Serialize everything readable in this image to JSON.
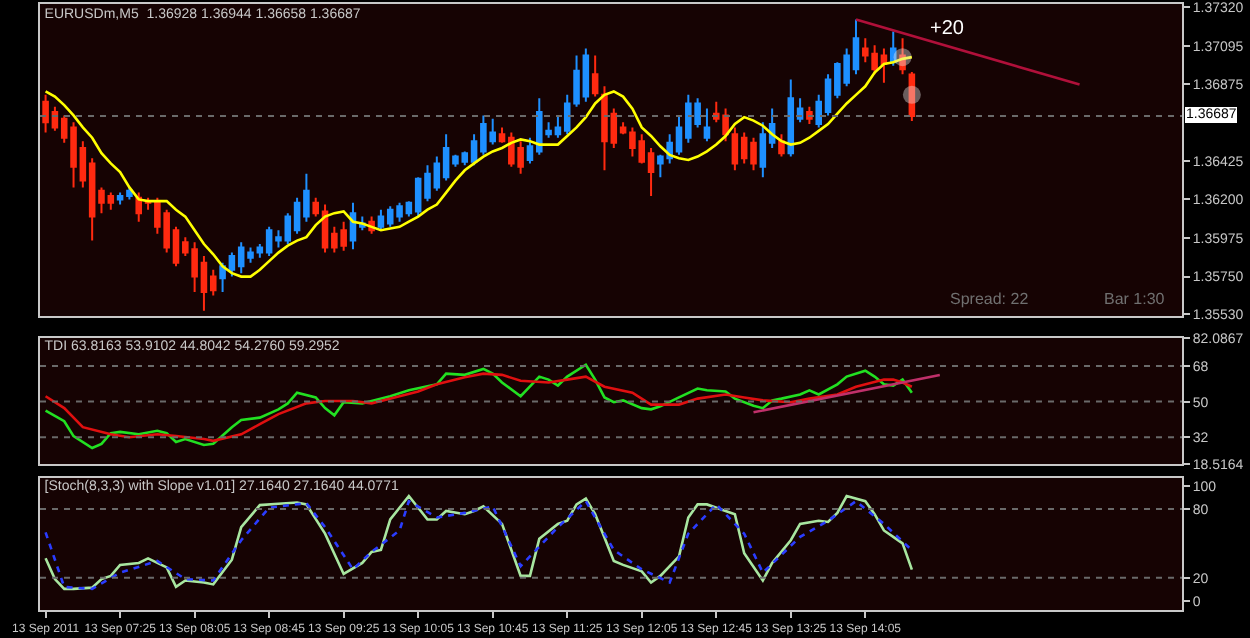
{
  "chart_data": [
    {
      "type": "candlestick",
      "title": "EURUSDm,M5  1.36928 1.36944 1.36658 1.36687",
      "x": [
        "2011-09-13T06:45",
        "2011-09-13T06:50",
        "2011-09-13T06:55",
        "2011-09-13T07:00",
        "2011-09-13T07:05",
        "2011-09-13T07:10",
        "2011-09-13T07:15",
        "2011-09-13T07:20",
        "2011-09-13T07:25",
        "2011-09-13T07:30",
        "2011-09-13T07:35",
        "2011-09-13T07:40",
        "2011-09-13T07:45",
        "2011-09-13T07:50",
        "2011-09-13T07:55",
        "2011-09-13T08:00",
        "2011-09-13T08:05",
        "2011-09-13T08:10",
        "2011-09-13T08:15",
        "2011-09-13T08:20",
        "2011-09-13T08:25",
        "2011-09-13T08:30",
        "2011-09-13T08:35",
        "2011-09-13T08:40",
        "2011-09-13T08:45",
        "2011-09-13T08:50",
        "2011-09-13T08:55",
        "2011-09-13T09:00",
        "2011-09-13T09:05",
        "2011-09-13T09:10",
        "2011-09-13T09:15",
        "2011-09-13T09:20",
        "2011-09-13T09:25",
        "2011-09-13T09:30",
        "2011-09-13T09:35",
        "2011-09-13T09:40",
        "2011-09-13T09:45",
        "2011-09-13T09:50",
        "2011-09-13T09:55",
        "2011-09-13T10:00",
        "2011-09-13T10:05",
        "2011-09-13T10:10",
        "2011-09-13T10:15",
        "2011-09-13T10:20",
        "2011-09-13T10:25",
        "2011-09-13T10:30",
        "2011-09-13T10:35",
        "2011-09-13T10:40",
        "2011-09-13T10:45",
        "2011-09-13T10:50",
        "2011-09-13T10:55",
        "2011-09-13T11:00",
        "2011-09-13T11:05",
        "2011-09-13T11:10",
        "2011-09-13T11:15",
        "2011-09-13T11:20",
        "2011-09-13T11:25",
        "2011-09-13T11:30",
        "2011-09-13T11:35",
        "2011-09-13T11:40",
        "2011-09-13T11:45",
        "2011-09-13T11:50",
        "2011-09-13T11:55",
        "2011-09-13T12:00",
        "2011-09-13T12:05",
        "2011-09-13T12:10",
        "2011-09-13T12:15",
        "2011-09-13T12:20",
        "2011-09-13T12:25",
        "2011-09-13T12:30",
        "2011-09-13T12:35",
        "2011-09-13T12:40",
        "2011-09-13T12:45",
        "2011-09-13T12:50",
        "2011-09-13T12:55",
        "2011-09-13T13:00",
        "2011-09-13T13:05",
        "2011-09-13T13:10",
        "2011-09-13T13:15",
        "2011-09-13T13:20",
        "2011-09-13T13:25",
        "2011-09-13T13:30",
        "2011-09-13T13:35",
        "2011-09-13T13:40",
        "2011-09-13T13:45",
        "2011-09-13T13:50",
        "2011-09-13T13:55",
        "2011-09-13T14:00",
        "2011-09-13T14:05",
        "2011-09-13T14:10",
        "2011-09-13T14:15",
        "2011-09-13T14:20",
        "2011-09-13T14:25",
        "2011-09-13T14:30"
      ],
      "ohlc": [
        [
          1.3677,
          1.3681,
          1.3659,
          1.3665
        ],
        [
          1.3671,
          1.3674,
          1.366,
          1.3662
        ],
        [
          1.3667,
          1.3669,
          1.3653,
          1.3656
        ],
        [
          1.3662,
          1.3665,
          1.3627,
          1.3639
        ],
        [
          1.365,
          1.3654,
          1.3627,
          1.3631
        ],
        [
          1.3641,
          1.3644,
          1.3596,
          1.361
        ],
        [
          1.3625,
          1.3627,
          1.3612,
          1.3618
        ],
        [
          1.3622,
          1.3624,
          1.3614,
          1.3618
        ],
        [
          1.362,
          1.3624,
          1.3617,
          1.3622
        ],
        [
          1.3622,
          1.3627,
          1.362,
          1.3625
        ],
        [
          1.3621,
          1.3624,
          1.3607,
          1.3612
        ],
        [
          1.3619,
          1.3621,
          1.3614,
          1.3618
        ],
        [
          1.3619,
          1.3621,
          1.36,
          1.3604
        ],
        [
          1.3612,
          1.3614,
          1.3589,
          1.3592
        ],
        [
          1.3602,
          1.3604,
          1.3581,
          1.3583
        ],
        [
          1.3595,
          1.3598,
          1.3587,
          1.3589
        ],
        [
          1.3591,
          1.3595,
          1.3566,
          1.3575
        ],
        [
          1.3583,
          1.3587,
          1.3555,
          1.3566
        ],
        [
          1.3575,
          1.3579,
          1.3564,
          1.3567
        ],
        [
          1.3574,
          1.3583,
          1.3566,
          1.3581
        ],
        [
          1.3579,
          1.3589,
          1.3575,
          1.3587
        ],
        [
          1.3581,
          1.3595,
          1.3577,
          1.3592
        ],
        [
          1.3586,
          1.3592,
          1.3583,
          1.3589
        ],
        [
          1.3589,
          1.3594,
          1.3586,
          1.3592
        ],
        [
          1.3589,
          1.3604,
          1.3587,
          1.3602
        ],
        [
          1.3596,
          1.3602,
          1.3592,
          1.3598
        ],
        [
          1.3596,
          1.3612,
          1.3594,
          1.361
        ],
        [
          1.3602,
          1.3621,
          1.36,
          1.3618
        ],
        [
          1.361,
          1.3635,
          1.3607,
          1.3625
        ],
        [
          1.3618,
          1.3621,
          1.361,
          1.3612
        ],
        [
          1.3613,
          1.3617,
          1.3589,
          1.3592
        ],
        [
          1.36,
          1.3604,
          1.3589,
          1.3592
        ],
        [
          1.3602,
          1.3607,
          1.359,
          1.3593
        ],
        [
          1.3596,
          1.3618,
          1.3591,
          1.3612
        ],
        [
          1.3604,
          1.361,
          1.3602,
          1.3606
        ],
        [
          1.3607,
          1.361,
          1.36,
          1.3602
        ],
        [
          1.3604,
          1.3614,
          1.3602,
          1.361
        ],
        [
          1.3606,
          1.3616,
          1.3604,
          1.3614
        ],
        [
          1.361,
          1.3618,
          1.3607,
          1.3616
        ],
        [
          1.3612,
          1.3619,
          1.361,
          1.3618
        ],
        [
          1.3613,
          1.3633,
          1.361,
          1.3632
        ],
        [
          1.3621,
          1.364,
          1.3619,
          1.3635
        ],
        [
          1.3627,
          1.3645,
          1.3625,
          1.3641
        ],
        [
          1.3633,
          1.3658,
          1.3631,
          1.365
        ],
        [
          1.3641,
          1.3646,
          1.3639,
          1.3645
        ],
        [
          1.3642,
          1.3648,
          1.364,
          1.3647
        ],
        [
          1.3642,
          1.3658,
          1.364,
          1.3654
        ],
        [
          1.3648,
          1.3669,
          1.3646,
          1.3664
        ],
        [
          1.3654,
          1.3667,
          1.3652,
          1.3659
        ],
        [
          1.3658,
          1.3662,
          1.3653,
          1.3654
        ],
        [
          1.3656,
          1.3659,
          1.3639,
          1.3641
        ],
        [
          1.365,
          1.3654,
          1.3635,
          1.3639
        ],
        [
          1.3643,
          1.3656,
          1.3641,
          1.3651
        ],
        [
          1.3648,
          1.3679,
          1.3646,
          1.3671
        ],
        [
          1.3658,
          1.3665,
          1.3656,
          1.366
        ],
        [
          1.3658,
          1.3669,
          1.3656,
          1.3662
        ],
        [
          1.366,
          1.3681,
          1.3658,
          1.3676
        ],
        [
          1.3676,
          1.3704,
          1.3674,
          1.3695
        ],
        [
          1.368,
          1.3708,
          1.3677,
          1.3704
        ],
        [
          1.3693,
          1.3704,
          1.368,
          1.3682
        ],
        [
          1.3681,
          1.3686,
          1.3637,
          1.3654
        ],
        [
          1.367,
          1.3673,
          1.365,
          1.3653
        ],
        [
          1.3662,
          1.3665,
          1.3658,
          1.3659
        ],
        [
          1.3659,
          1.3662,
          1.3645,
          1.365
        ],
        [
          1.3654,
          1.3658,
          1.3641,
          1.3642
        ],
        [
          1.3647,
          1.365,
          1.3622,
          1.3636
        ],
        [
          1.3641,
          1.3646,
          1.3633,
          1.3645
        ],
        [
          1.3644,
          1.3658,
          1.3641,
          1.3653
        ],
        [
          1.3648,
          1.3669,
          1.3646,
          1.3662
        ],
        [
          1.3656,
          1.3681,
          1.3653,
          1.3676
        ],
        [
          1.3664,
          1.3679,
          1.3662,
          1.3676
        ],
        [
          1.3656,
          1.3673,
          1.3654,
          1.3662
        ],
        [
          1.367,
          1.3677,
          1.3665,
          1.3667
        ],
        [
          1.3669,
          1.3673,
          1.3654,
          1.3658
        ],
        [
          1.3658,
          1.3662,
          1.3637,
          1.3641
        ],
        [
          1.3656,
          1.3659,
          1.3641,
          1.3644
        ],
        [
          1.3653,
          1.3656,
          1.3637,
          1.3641
        ],
        [
          1.3639,
          1.3665,
          1.3633,
          1.3658
        ],
        [
          1.3653,
          1.3673,
          1.365,
          1.3664
        ],
        [
          1.3654,
          1.3658,
          1.3645,
          1.3647
        ],
        [
          1.3647,
          1.369,
          1.3645,
          1.3679
        ],
        [
          1.3667,
          1.3679,
          1.3665,
          1.3673
        ],
        [
          1.3671,
          1.3674,
          1.3664,
          1.3667
        ],
        [
          1.3664,
          1.3681,
          1.3662,
          1.3677
        ],
        [
          1.3671,
          1.3693,
          1.3669,
          1.369
        ],
        [
          1.3681,
          1.37,
          1.3679,
          1.3699
        ],
        [
          1.3688,
          1.3708,
          1.3686,
          1.3704
        ],
        [
          1.3696,
          1.3725,
          1.3693,
          1.3714
        ],
        [
          1.3708,
          1.3714,
          1.37,
          1.3704
        ],
        [
          1.3705,
          1.371,
          1.3693,
          1.3696
        ],
        [
          1.3704,
          1.3708,
          1.3688,
          1.3699
        ],
        [
          1.37,
          1.3718,
          1.3698,
          1.3708
        ],
        [
          1.3704,
          1.3714,
          1.3693,
          1.3696
        ],
        [
          1.36928,
          1.36944,
          1.36658,
          1.36687
        ]
      ],
      "colors": [
        "#ff2a10",
        "#ff2a10",
        "#ff2a10",
        "#ff2a10",
        "#ff2a10",
        "#ff2a10",
        "#ff2a10",
        "#ff2a10",
        "#1e90ff",
        "#1e90ff",
        "#ff2a10",
        "#ff2a10",
        "#ff2a10",
        "#ff2a10",
        "#ff2a10",
        "#ff2a10",
        "#ff2a10",
        "#ff2a10",
        "#ff2a10",
        "#1e90ff",
        "#1e90ff",
        "#1e90ff",
        "#1e90ff",
        "#1e90ff",
        "#1e90ff",
        "#1e90ff",
        "#1e90ff",
        "#1e90ff",
        "#1e90ff",
        "#ff2a10",
        "#ff2a10",
        "#ff2a10",
        "#ff2a10",
        "#1e90ff",
        "#1e90ff",
        "#ff2a10",
        "#1e90ff",
        "#1e90ff",
        "#1e90ff",
        "#1e90ff",
        "#1e90ff",
        "#1e90ff",
        "#1e90ff",
        "#1e90ff",
        "#1e90ff",
        "#1e90ff",
        "#1e90ff",
        "#1e90ff",
        "#1e90ff",
        "#ff2a10",
        "#ff2a10",
        "#ff2a10",
        "#1e90ff",
        "#1e90ff",
        "#1e90ff",
        "#1e90ff",
        "#1e90ff",
        "#1e90ff",
        "#1e90ff",
        "#ff2a10",
        "#ff2a10",
        "#ff2a10",
        "#ff2a10",
        "#ff2a10",
        "#ff2a10",
        "#ff2a10",
        "#1e90ff",
        "#1e90ff",
        "#1e90ff",
        "#1e90ff",
        "#1e90ff",
        "#1e90ff",
        "#ff2a10",
        "#ff2a10",
        "#ff2a10",
        "#ff2a10",
        "#ff2a10",
        "#1e90ff",
        "#1e90ff",
        "#ff2a10",
        "#1e90ff",
        "#1e90ff",
        "#ff2a10",
        "#1e90ff",
        "#1e90ff",
        "#1e90ff",
        "#1e90ff",
        "#1e90ff",
        "#ff2a10",
        "#ff2a10",
        "#ff2a10",
        "#1e90ff",
        "#ff2a10",
        "#ff2a10"
      ],
      "series": [
        {
          "type": "line",
          "color": "#ffff00",
          "values": [
            1.3683,
            1.368,
            1.3675,
            1.3669,
            1.3662,
            1.3656,
            1.3647,
            1.3641,
            1.3636,
            1.3627,
            1.362,
            1.3619,
            1.3619,
            1.3619,
            1.3614,
            1.361,
            1.3602,
            1.3594,
            1.3588,
            1.3581,
            1.3577,
            1.3575,
            1.3575,
            1.3579,
            1.3584,
            1.3589,
            1.3593,
            1.3596,
            1.3598,
            1.3605,
            1.361,
            1.3612,
            1.3613,
            1.3607,
            1.3606,
            1.3604,
            1.3602,
            1.3603,
            1.3604,
            1.3607,
            1.361,
            1.3614,
            1.3617,
            1.3624,
            1.3631,
            1.3637,
            1.3641,
            1.3645,
            1.3648,
            1.365,
            1.3653,
            1.3655,
            1.3654,
            1.3652,
            1.3652,
            1.3652,
            1.3657,
            1.3662,
            1.3668,
            1.3676,
            1.3681,
            1.3683,
            1.368,
            1.3673,
            1.3662,
            1.3657,
            1.3651,
            1.3646,
            1.3644,
            1.3643,
            1.3645,
            1.3648,
            1.3652,
            1.3657,
            1.3664,
            1.3668,
            1.3666,
            1.3663,
            1.3658,
            1.3654,
            1.3652,
            1.3653,
            1.3656,
            1.366,
            1.3664,
            1.367,
            1.3676,
            1.3681,
            1.3686,
            1.3694,
            1.3699,
            1.37,
            1.3702,
            1.3703
          ]
        },
        {
          "type": "line",
          "color": "#b0103a",
          "x": [
            "2011-09-13T14:00",
            "2011-09-13T16:00"
          ],
          "values": [
            1.3725,
            1.3687
          ]
        },
        {
          "type": "scatter",
          "color": "#e8e8e8",
          "marker": "circle",
          "x": [
            "2011-09-13T14:25",
            "2011-09-13T14:30"
          ],
          "values": [
            1.3703,
            1.3681
          ]
        }
      ],
      "xlim": [
        "2011-09-13T06:42",
        "2011-09-13T16:55"
      ],
      "ylim": [
        1.3552,
        1.3734
      ],
      "yticks": [
        {
          "value": 1.3732,
          "label": "1.37320"
        },
        1.37095,
        1.36875,
        1.36425,
        {
          "value": 1.362,
          "label": "1.36200"
        },
        1.35975,
        {
          "value": 1.3575,
          "label": "1.35750"
        },
        {
          "value": 1.3553,
          "label": "1.35530"
        }
      ],
      "tick_labels": "y",
      "ref_lines": [
        {
          "axis": "y",
          "value": 1.36687,
          "label": "1.36687",
          "color": "#6a6a6a",
          "line_style": "dotted"
        }
      ],
      "annotations": [
        "+20",
        "Spread: 22",
        "Bar 1:30"
      ]
    },
    {
      "type": "line",
      "title": "TDI 63.8163 53.9102 44.8042 54.2760 59.2952",
      "series": [
        {
          "color": "#22e022",
          "x": [
            "2011-09-13T06:45",
            "2011-09-13T06:55",
            "2011-09-13T07:00",
            "2011-09-13T07:10",
            "2011-09-13T07:15",
            "2011-09-13T07:20",
            "2011-09-13T07:25",
            "2011-09-13T07:35",
            "2011-09-13T07:45",
            "2011-09-13T07:50",
            "2011-09-13T07:55",
            "2011-09-13T08:00",
            "2011-09-13T08:10",
            "2011-09-13T08:15",
            "2011-09-13T08:25",
            "2011-09-13T08:30",
            "2011-09-13T08:40",
            "2011-09-13T08:50",
            "2011-09-13T08:55",
            "2011-09-13T09:00",
            "2011-09-13T09:10",
            "2011-09-13T09:15",
            "2011-09-13T09:20",
            "2011-09-13T09:25",
            "2011-09-13T09:35",
            "2011-09-13T09:40",
            "2011-09-13T09:50",
            "2011-09-13T10:00",
            "2011-09-13T10:15",
            "2011-09-13T10:20",
            "2011-09-13T10:30",
            "2011-09-13T10:40",
            "2011-09-13T10:45",
            "2011-09-13T10:50",
            "2011-09-13T11:00",
            "2011-09-13T11:10",
            "2011-09-13T11:15",
            "2011-09-13T11:20",
            "2011-09-13T11:25",
            "2011-09-13T11:35",
            "2011-09-13T11:40",
            "2011-09-13T11:45",
            "2011-09-13T11:50",
            "2011-09-13T11:55",
            "2011-09-13T12:05",
            "2011-09-13T12:10",
            "2011-09-13T12:15",
            "2011-09-13T12:25",
            "2011-09-13T12:35",
            "2011-09-13T12:40",
            "2011-09-13T12:50",
            "2011-09-13T12:55",
            "2011-09-13T13:05",
            "2011-09-13T13:10",
            "2011-09-13T13:15",
            "2011-09-13T13:20",
            "2011-09-13T13:30",
            "2011-09-13T13:35",
            "2011-09-13T13:40",
            "2011-09-13T13:50",
            "2011-09-13T13:55",
            "2011-09-13T14:05",
            "2011-09-13T14:10",
            "2011-09-13T14:15",
            "2011-09-13T14:20",
            "2011-09-13T14:25",
            "2011-09-13T14:30"
          ],
          "values": [
            45.5,
            40.1,
            32.6,
            26.6,
            28.7,
            34.1,
            34.7,
            33.5,
            35.3,
            34.1,
            29.6,
            31.1,
            28.1,
            28.7,
            37.1,
            40.7,
            41.9,
            46.1,
            49.1,
            54.5,
            52.1,
            46.7,
            43.1,
            49.7,
            49.1,
            50.3,
            52.7,
            55.7,
            58.7,
            64.1,
            63.5,
            66.5,
            64.1,
            59.6,
            52.7,
            62.6,
            61.1,
            58.1,
            62.6,
            68.6,
            61.1,
            52.1,
            49.7,
            50.6,
            46.7,
            46.1,
            47.6,
            52.1,
            56.6,
            55.7,
            55.1,
            51.5,
            47.9,
            46.7,
            50.6,
            51.5,
            53.6,
            55.7,
            53.6,
            58.7,
            62.6,
            65.6,
            62.6,
            58.7,
            58.1,
            61.1,
            54.5
          ]
        },
        {
          "color": "#e01010",
          "x": [
            "2011-09-13T06:45",
            "2011-09-13T06:55",
            "2011-09-13T07:05",
            "2011-09-13T07:20",
            "2011-09-13T07:30",
            "2011-09-13T07:45",
            "2011-09-13T07:55",
            "2011-09-13T08:10",
            "2011-09-13T08:15",
            "2011-09-13T08:30",
            "2011-09-13T08:40",
            "2011-09-13T08:50",
            "2011-09-13T09:05",
            "2011-09-13T09:15",
            "2011-09-13T09:30",
            "2011-09-13T09:40",
            "2011-09-13T09:55",
            "2011-09-13T10:05",
            "2011-09-13T10:15",
            "2011-09-13T10:30",
            "2011-09-13T10:40",
            "2011-09-13T10:50",
            "2011-09-13T11:00",
            "2011-09-13T11:15",
            "2011-09-13T11:25",
            "2011-09-13T11:35",
            "2011-09-13T11:45",
            "2011-09-13T12:00",
            "2011-09-13T12:10",
            "2011-09-13T12:25",
            "2011-09-13T12:35",
            "2011-09-13T12:50",
            "2011-09-13T13:00",
            "2011-09-13T13:10",
            "2011-09-13T13:25",
            "2011-09-13T13:35",
            "2011-09-13T13:50",
            "2011-09-13T14:00",
            "2011-09-13T14:15",
            "2011-09-13T14:20",
            "2011-09-13T14:25",
            "2011-09-13T14:30"
          ],
          "values": [
            52.7,
            46.7,
            37.1,
            33.5,
            32,
            33.5,
            32.6,
            31.1,
            30.2,
            33.5,
            38.6,
            43.7,
            49.1,
            50.3,
            50.3,
            49.1,
            52.7,
            55.1,
            58.7,
            62.3,
            64.1,
            63.5,
            60.5,
            59.6,
            61.1,
            62.6,
            57.5,
            54.5,
            48.5,
            48.5,
            51.5,
            53.6,
            52.1,
            50.6,
            49.7,
            51.5,
            53.6,
            57.5,
            61.1,
            61.1,
            59.6,
            57.5
          ]
        },
        {
          "color": "#c0306a",
          "x": [
            "2011-09-13T13:05",
            "2011-09-13T14:45"
          ],
          "values": [
            44.6,
            63.4
          ]
        }
      ],
      "xlim": [
        "2011-09-13T06:42",
        "2011-09-13T16:55"
      ],
      "ylim": [
        18.5164,
        82.0867
      ],
      "yticks": [
        18.5164,
        32,
        50,
        68,
        82.0867
      ],
      "tick_labels": "y",
      "ref_lines": [
        {
          "axis": "y",
          "value": 32,
          "color": "#6a6a6a",
          "line_style": "dotted"
        },
        {
          "axis": "y",
          "value": 50,
          "color": "#6a6a6a",
          "line_style": "dotted"
        },
        {
          "axis": "y",
          "value": 68,
          "color": "#6a6a6a",
          "line_style": "dotted"
        }
      ]
    },
    {
      "type": "line",
      "title": "[Stoch(8,3,3) with Slope v1.01] 27.1640 27.1640 44.0771",
      "series": [
        {
          "color": "#a8e6a0",
          "x": [
            "2011-09-13T06:45",
            "2011-09-13T06:50",
            "2011-09-13T06:55",
            "2011-09-13T07:00",
            "2011-09-13T07:10",
            "2011-09-13T07:15",
            "2011-09-13T07:20",
            "2011-09-13T07:25",
            "2011-09-13T07:35",
            "2011-09-13T07:40",
            "2011-09-13T07:50",
            "2011-09-13T07:55",
            "2011-09-13T08:00",
            "2011-09-13T08:10",
            "2011-09-13T08:15",
            "2011-09-13T08:25",
            "2011-09-13T08:30",
            "2011-09-13T08:40",
            "2011-09-13T08:50",
            "2011-09-13T09:00",
            "2011-09-13T09:05",
            "2011-09-13T09:15",
            "2011-09-13T09:25",
            "2011-09-13T09:35",
            "2011-09-13T09:40",
            "2011-09-13T09:45",
            "2011-09-13T09:50",
            "2011-09-13T10:00",
            "2011-09-13T10:05",
            "2011-09-13T10:10",
            "2011-09-13T10:15",
            "2011-09-13T10:20",
            "2011-09-13T10:30",
            "2011-09-13T10:35",
            "2011-09-13T10:40",
            "2011-09-13T10:50",
            "2011-09-13T11:00",
            "2011-09-13T11:05",
            "2011-09-13T11:10",
            "2011-09-13T11:20",
            "2011-09-13T11:25",
            "2011-09-13T11:30",
            "2011-09-13T11:35",
            "2011-09-13T11:40",
            "2011-09-13T11:50",
            "2011-09-13T11:55",
            "2011-09-13T12:05",
            "2011-09-13T12:10",
            "2011-09-13T12:15",
            "2011-09-13T12:25",
            "2011-09-13T12:30",
            "2011-09-13T12:35",
            "2011-09-13T12:40",
            "2011-09-13T12:50",
            "2011-09-13T12:55",
            "2011-09-13T13:00",
            "2011-09-13T13:10",
            "2011-09-13T13:15",
            "2011-09-13T13:25",
            "2011-09-13T13:30",
            "2011-09-13T13:40",
            "2011-09-13T13:45",
            "2011-09-13T13:50",
            "2011-09-13T13:55",
            "2011-09-13T14:05",
            "2011-09-13T14:10",
            "2011-09-13T14:15",
            "2011-09-13T14:20",
            "2011-09-13T14:25",
            "2011-09-13T14:30"
          ],
          "values": [
            37,
            18.9,
            10.4,
            10.4,
            11.5,
            18.9,
            21.7,
            31.3,
            33,
            37,
            29.1,
            12.1,
            17.7,
            16,
            14.3,
            35.8,
            64.2,
            83.4,
            84.5,
            85.7,
            84,
            58.5,
            23.4,
            33,
            42.6,
            44.3,
            70.9,
            91.3,
            81.1,
            70.9,
            70.9,
            78.3,
            75.5,
            78.3,
            82.3,
            67,
            21.7,
            21.7,
            54,
            67,
            69.8,
            84,
            89.1,
            75.5,
            34.7,
            31.3,
            25.7,
            16,
            21.7,
            38.7,
            72.6,
            84,
            84,
            78.3,
            75.5,
            41.5,
            17.7,
            33,
            52.8,
            67,
            69.8,
            68.7,
            76.6,
            91.3,
            86.8,
            75.5,
            61.3,
            55.7,
            50,
            27.2
          ]
        },
        {
          "color": "#2a3cff",
          "line_style": "dotted",
          "x": [
            "2011-09-13T06:45",
            "2011-09-13T06:55",
            "2011-09-13T07:10",
            "2011-09-13T07:25",
            "2011-09-13T07:45",
            "2011-09-13T08:00",
            "2011-09-13T08:15",
            "2011-09-13T08:30",
            "2011-09-13T08:45",
            "2011-09-13T09:05",
            "2011-09-13T09:15",
            "2011-09-13T09:30",
            "2011-09-13T09:40",
            "2011-09-13T09:55",
            "2011-09-13T10:00",
            "2011-09-13T10:15",
            "2011-09-13T10:30",
            "2011-09-13T10:45",
            "2011-09-13T11:00",
            "2011-09-13T11:20",
            "2011-09-13T11:35",
            "2011-09-13T11:50",
            "2011-09-13T12:05",
            "2011-09-13T12:20",
            "2011-09-13T12:30",
            "2011-09-13T12:45",
            "2011-09-13T13:00",
            "2011-09-13T13:10",
            "2011-09-13T13:30",
            "2011-09-13T13:45",
            "2011-09-13T14:00",
            "2011-09-13T14:15",
            "2011-09-13T14:30"
          ],
          "values": [
            59.6,
            12.1,
            10.4,
            24.5,
            34.7,
            18.9,
            17.7,
            52.8,
            81.1,
            85.1,
            64.2,
            27.4,
            42.6,
            61.3,
            86.8,
            72.6,
            76.6,
            82.3,
            30.2,
            64.2,
            86.8,
            44.3,
            27.4,
            16,
            58.5,
            84,
            58.5,
            24.5,
            55.7,
            69.8,
            86.8,
            67,
            44.1
          ]
        }
      ],
      "xlim": [
        "2011-09-13T06:42",
        "2011-09-13T16:55"
      ],
      "xticks": [
        {
          "value": "2011-09-13T06:45",
          "label": "13 Sep 2011"
        },
        {
          "value": "2011-09-13T07:25",
          "label": "13 Sep 07:25"
        },
        {
          "value": "2011-09-13T08:05",
          "label": "13 Sep 08:05"
        },
        {
          "value": "2011-09-13T08:45",
          "label": "13 Sep 08:45"
        },
        {
          "value": "2011-09-13T09:25",
          "label": "13 Sep 09:25"
        },
        {
          "value": "2011-09-13T10:05",
          "label": "13 Sep 10:05"
        },
        {
          "value": "2011-09-13T10:45",
          "label": "13 Sep 10:45"
        },
        {
          "value": "2011-09-13T11:25",
          "label": "13 Sep 11:25"
        },
        {
          "value": "2011-09-13T12:05",
          "label": "13 Sep 12:05"
        },
        {
          "value": "2011-09-13T12:45",
          "label": "13 Sep 12:45"
        },
        {
          "value": "2011-09-13T13:25",
          "label": "13 Sep 13:25"
        },
        {
          "value": "2011-09-13T14:05",
          "label": "13 Sep 14:05"
        }
      ],
      "ylim": [
        -8,
        107
      ],
      "yticks": [
        0,
        20,
        80,
        100
      ],
      "ref_lines": [
        {
          "axis": "y",
          "value": 20,
          "color": "#6a6a6a",
          "line_style": "dotted"
        },
        {
          "axis": "y",
          "value": 80,
          "color": "#6a6a6a",
          "line_style": "dotted"
        }
      ]
    }
  ]
}
